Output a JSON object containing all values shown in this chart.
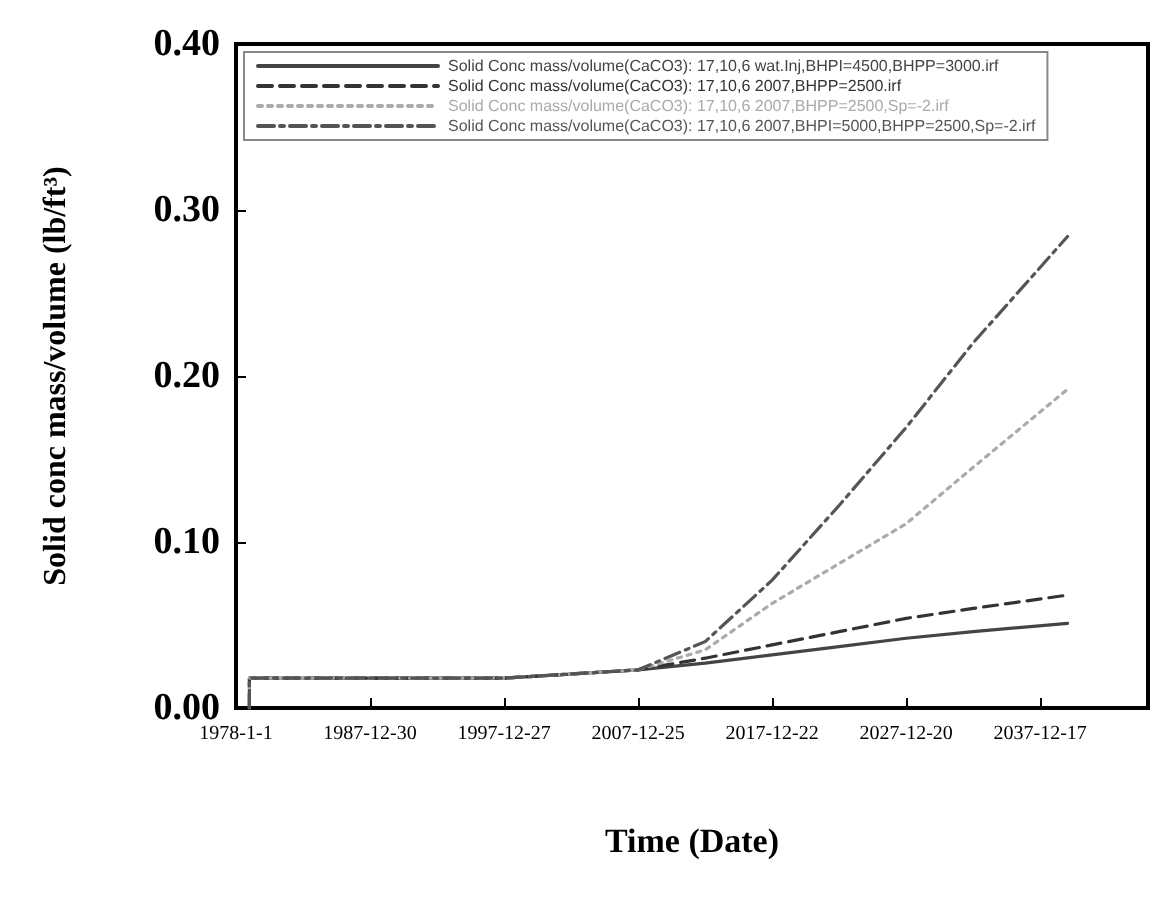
{
  "chart_data": {
    "type": "line",
    "xlabel": "Time (Date)",
    "ylabel": "Solid conc mass/volume (lb/ft³)",
    "xlim": [
      "1978-01-01",
      "2046-01-01"
    ],
    "xticks": [
      {
        "value": "1978-01-01",
        "label": "1978-1-1"
      },
      {
        "value": "1987-12-30",
        "label": "1987-12-30"
      },
      {
        "value": "1997-12-27",
        "label": "1997-12-27"
      },
      {
        "value": "2007-12-25",
        "label": "2007-12-25"
      },
      {
        "value": "2017-12-22",
        "label": "2017-12-22"
      },
      {
        "value": "2027-12-20",
        "label": "2027-12-20"
      },
      {
        "value": "2037-12-17",
        "label": "2037-12-17"
      }
    ],
    "ylim": [
      0,
      0.4
    ],
    "yticks": [
      {
        "value": 0,
        "label": "0.00"
      },
      {
        "value": 0.1,
        "label": "0.10"
      },
      {
        "value": 0.2,
        "label": "0.20"
      },
      {
        "value": 0.3,
        "label": "0.30"
      },
      {
        "value": 0.4,
        "label": "0.40"
      }
    ],
    "x": [
      "1979-01-01",
      "1979-01-02",
      "1990-01-01",
      "1997-12-27",
      "2002-01-01",
      "2007-12-25",
      "2012-12-25",
      "2017-12-22",
      "2022-12-20",
      "2027-12-20",
      "2032-12-20",
      "2040-01-01"
    ],
    "grid": false,
    "legend": "top",
    "marker": "none",
    "series": [
      {
        "name": "Solid Conc mass/volume(CaCO3): 17,10,6 wat.Inj,BHPI=4500,BHPP=3000.irf",
        "color": "#444444",
        "line_style": "solid",
        "values": [
          0,
          0.018,
          0.018,
          0.018,
          0.02,
          0.023,
          0.027,
          0.032,
          0.037,
          0.042,
          0.046,
          0.051
        ]
      },
      {
        "name": "Solid Conc mass/volume(CaCO3): 17,10,6 2007,BHPP=2500.irf",
        "color": "#333333",
        "line_style": "dashed",
        "values": [
          0,
          0.018,
          0.018,
          0.018,
          0.02,
          0.023,
          0.03,
          0.038,
          0.046,
          0.054,
          0.06,
          0.068
        ]
      },
      {
        "name": "Solid Conc mass/volume(CaCO3): 17,10,6 2007,BHPP=2500,Sp=-2.irf",
        "color": "#aaaaaa",
        "line_style": "dotted",
        "values": [
          0,
          0.018,
          0.018,
          0.018,
          0.02,
          0.023,
          0.035,
          0.063,
          0.087,
          0.111,
          0.145,
          0.192
        ]
      },
      {
        "name": "Solid Conc mass/volume(CaCO3): 17,10,6 2007,BHPI=5000,BHPP=2500,Sp=-2.irf",
        "color": "#555555",
        "line_style": "dashdot",
        "values": [
          0,
          0.018,
          0.018,
          0.018,
          0.02,
          0.023,
          0.04,
          0.077,
          0.122,
          0.169,
          0.22,
          0.284
        ]
      }
    ]
  }
}
